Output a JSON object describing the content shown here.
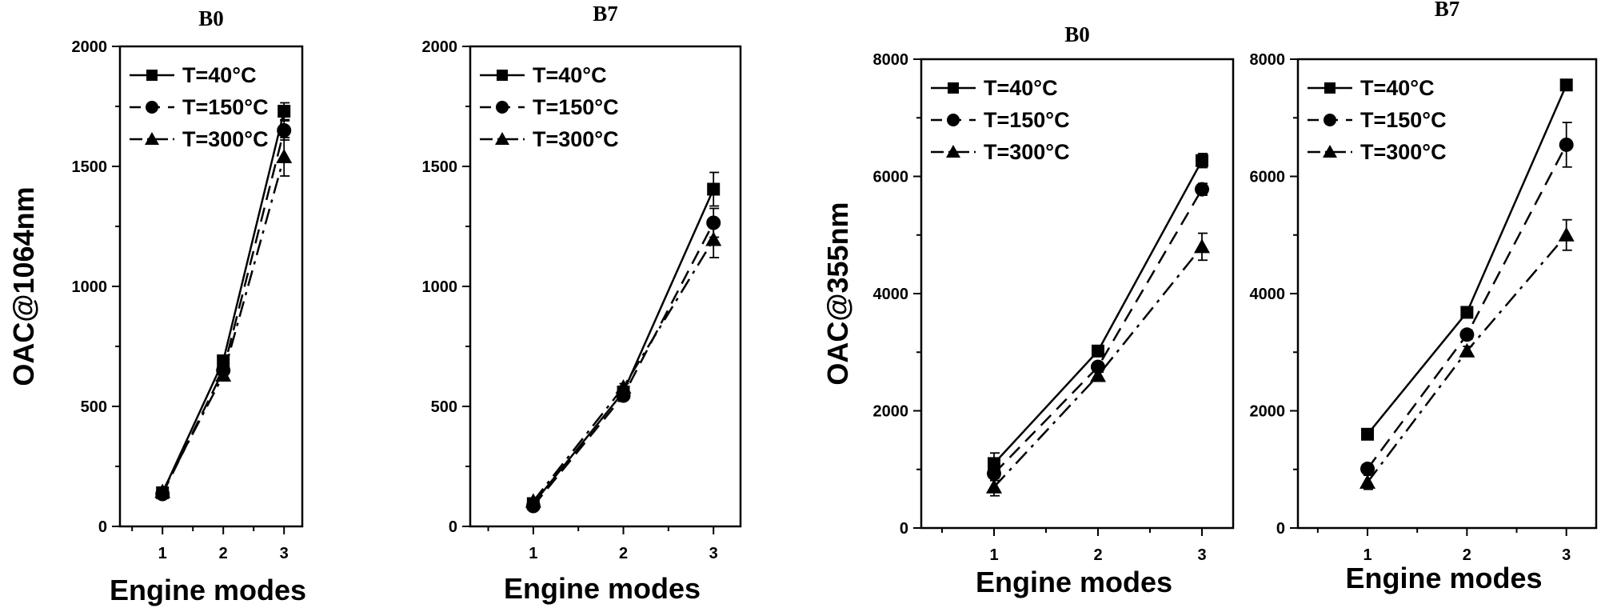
{
  "chart_data": [
    {
      "type": "line",
      "title": "B0",
      "xlabel": "Engine modes",
      "ylabel": "OAC@1064nm",
      "x": [
        1,
        2,
        3
      ],
      "xlim": [
        0.3,
        3.3
      ],
      "ylim": [
        0,
        2000
      ],
      "yticks": [
        0,
        500,
        1000,
        1500,
        2000
      ],
      "legend_position": "top-left",
      "grid": false,
      "series": [
        {
          "name": "T=40°C",
          "marker": "square",
          "dash": "solid",
          "values": [
            140,
            690,
            1730
          ],
          "errors": [
            10,
            15,
            35
          ]
        },
        {
          "name": "T=150°C",
          "marker": "circle",
          "dash": "dashed",
          "values": [
            135,
            650,
            1650
          ],
          "errors": [
            10,
            15,
            40
          ]
        },
        {
          "name": "T=300°C",
          "marker": "triangle",
          "dash": "dashdot",
          "values": [
            145,
            630,
            1540
          ],
          "errors": [
            10,
            15,
            80
          ]
        }
      ]
    },
    {
      "type": "line",
      "title": "B7",
      "xlabel": "Engine modes",
      "ylabel": "",
      "x": [
        1,
        2,
        3
      ],
      "xlim": [
        0.3,
        3.3
      ],
      "ylim": [
        0,
        2000
      ],
      "yticks": [
        0,
        500,
        1000,
        1500,
        2000
      ],
      "legend_position": "top-left",
      "grid": false,
      "series": [
        {
          "name": "T=40°C",
          "marker": "square",
          "dash": "solid",
          "values": [
            95,
            560,
            1405
          ],
          "errors": [
            10,
            15,
            70
          ]
        },
        {
          "name": "T=150°C",
          "marker": "circle",
          "dash": "dashed",
          "values": [
            85,
            545,
            1265
          ],
          "errors": [
            10,
            15,
            60
          ]
        },
        {
          "name": "T=300°C",
          "marker": "triangle",
          "dash": "dashdot",
          "values": [
            105,
            580,
            1195
          ],
          "errors": [
            10,
            15,
            75
          ]
        }
      ]
    },
    {
      "type": "line",
      "title": "B0",
      "xlabel": "Engine modes",
      "ylabel": "OAC@355nm",
      "x": [
        1,
        2,
        3
      ],
      "xlim": [
        0.3,
        3.3
      ],
      "ylim": [
        0,
        8000
      ],
      "yticks": [
        0,
        2000,
        4000,
        6000,
        8000
      ],
      "legend_position": "top-left",
      "grid": false,
      "series": [
        {
          "name": "T=40°C",
          "marker": "square",
          "dash": "solid",
          "values": [
            1100,
            3020,
            6270
          ],
          "errors": [
            180,
            60,
            120
          ]
        },
        {
          "name": "T=150°C",
          "marker": "circle",
          "dash": "dashed",
          "values": [
            930,
            2750,
            5780
          ],
          "errors": [
            120,
            60,
            100
          ]
        },
        {
          "name": "T=300°C",
          "marker": "triangle",
          "dash": "dashdot",
          "values": [
            700,
            2600,
            4800
          ],
          "errors": [
            150,
            60,
            230
          ]
        }
      ]
    },
    {
      "type": "line",
      "title": "B7",
      "xlabel": "Engine modes",
      "ylabel": "",
      "x": [
        1,
        2,
        3
      ],
      "xlim": [
        0.3,
        3.3
      ],
      "ylim": [
        0,
        8000
      ],
      "yticks": [
        0,
        2000,
        4000,
        6000,
        8000
      ],
      "legend_position": "top-left",
      "grid": false,
      "series": [
        {
          "name": "T=40°C",
          "marker": "square",
          "dash": "solid",
          "values": [
            1600,
            3680,
            7560
          ],
          "errors": [
            60,
            80,
            80
          ]
        },
        {
          "name": "T=150°C",
          "marker": "circle",
          "dash": "dashed",
          "values": [
            1010,
            3300,
            6540
          ],
          "errors": [
            60,
            80,
            380
          ]
        },
        {
          "name": "T=300°C",
          "marker": "triangle",
          "dash": "dashdot",
          "values": [
            780,
            3020,
            5000
          ],
          "errors": [
            120,
            80,
            260
          ]
        }
      ]
    }
  ]
}
